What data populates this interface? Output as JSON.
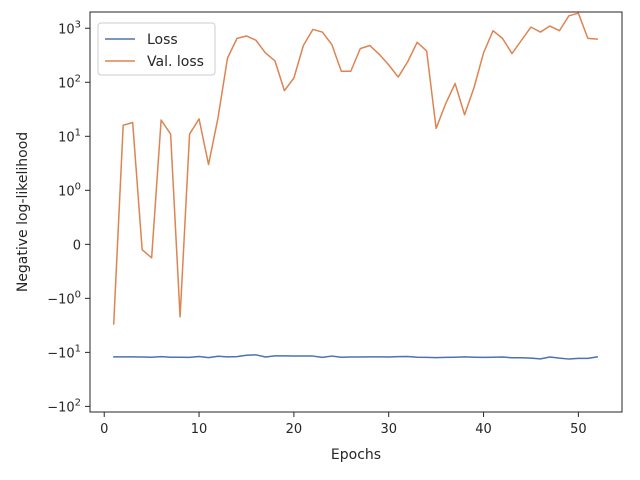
{
  "chart_data": {
    "type": "line",
    "xlabel": "Epochs",
    "ylabel": "Negative log-likelihood",
    "xlim": [
      -1.5,
      54.6
    ],
    "ylim": [
      -127,
      2000
    ],
    "yscale": "symlog",
    "x_ticks": [
      0,
      10,
      20,
      30,
      40,
      50
    ],
    "x_tick_labels": [
      "0",
      "10",
      "20",
      "30",
      "40",
      "50"
    ],
    "y_ticks": [
      -100,
      -10,
      -1,
      0,
      1,
      10,
      100,
      1000
    ],
    "y_tick_labels": [
      "−$10^2$",
      "−$10^1$",
      "−$10^0$",
      "0",
      "$10^0$",
      "$10^1$",
      "$10^2$",
      "$10^3$"
    ],
    "y_tick_display": [
      {
        "base": "−10",
        "exp": "2"
      },
      {
        "base": "−10",
        "exp": "1"
      },
      {
        "base": "−10",
        "exp": "0"
      },
      {
        "base": "0",
        "exp": ""
      },
      {
        "base": "10",
        "exp": "0"
      },
      {
        "base": "10",
        "exp": "1"
      },
      {
        "base": "10",
        "exp": "2"
      },
      {
        "base": "10",
        "exp": "3"
      }
    ],
    "legend": {
      "position": "upper-left",
      "entries": [
        "Loss",
        "Val. loss"
      ]
    },
    "grid": false,
    "x": [
      1,
      2,
      3,
      4,
      5,
      6,
      7,
      8,
      9,
      10,
      11,
      12,
      13,
      14,
      15,
      16,
      17,
      18,
      19,
      20,
      21,
      22,
      23,
      24,
      25,
      26,
      27,
      28,
      29,
      30,
      31,
      32,
      33,
      34,
      35,
      36,
      37,
      38,
      39,
      40,
      41,
      42,
      43,
      44,
      45,
      46,
      47,
      48,
      49,
      50,
      51,
      52
    ],
    "series": [
      {
        "name": "Loss",
        "color": "#4c72b0",
        "values": [
          -12.1,
          -12.1,
          -12.1,
          -12.2,
          -12.3,
          -12.0,
          -12.3,
          -12.3,
          -12.4,
          -11.9,
          -12.5,
          -11.8,
          -12.1,
          -12.0,
          -11.3,
          -11.1,
          -12.2,
          -11.6,
          -11.6,
          -11.7,
          -11.7,
          -11.7,
          -12.4,
          -11.7,
          -12.3,
          -12.2,
          -12.2,
          -12.1,
          -12.1,
          -12.2,
          -12.0,
          -11.9,
          -12.3,
          -12.4,
          -12.5,
          -12.4,
          -12.3,
          -12.1,
          -12.3,
          -12.4,
          -12.3,
          -12.2,
          -12.6,
          -12.6,
          -12.8,
          -13.2,
          -12.2,
          -12.8,
          -13.3,
          -12.9,
          -12.9,
          -12.1
        ]
      },
      {
        "name": "Val. loss",
        "color": "#dd8452",
        "values": [
          -3.0,
          16,
          18,
          -0.1,
          -0.25,
          20,
          11,
          -2.2,
          11,
          21,
          3,
          22,
          280,
          650,
          720,
          600,
          350,
          250,
          70,
          120,
          480,
          950,
          850,
          500,
          160,
          160,
          420,
          480,
          330,
          210,
          125,
          240,
          550,
          380,
          14,
          40,
          95,
          25,
          80,
          350,
          900,
          650,
          340,
          600,
          1050,
          850,
          1100,
          900,
          1700,
          1900,
          650,
          630
        ]
      }
    ]
  }
}
